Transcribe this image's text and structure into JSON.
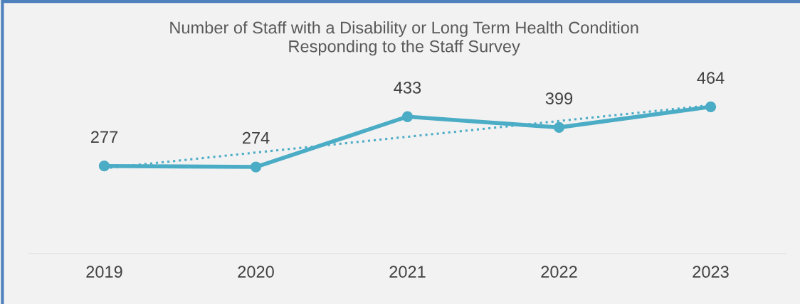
{
  "chart_data": {
    "type": "line",
    "title": "Number of Staff with a Disability or Long Term Health Condition\nResponding to the Staff Survey",
    "categories": [
      "2019",
      "2020",
      "2021",
      "2022",
      "2023"
    ],
    "ylim": [
      0,
      800
    ],
    "tick_labels": "x",
    "grid": false,
    "series": [
      {
        "color": "#4bacc6",
        "values": [
          277,
          274,
          433,
          399,
          464
        ],
        "value_labels": [
          "277",
          "274",
          "433",
          "399",
          "464"
        ],
        "marker": "circle",
        "line_style": "solid"
      },
      {
        "type": "line",
        "color": "#4bacc6",
        "values": [
          269.6,
          319.5,
          369.4,
          419.3,
          469.2
        ],
        "marker": "none",
        "line_style": "dotted"
      }
    ]
  }
}
